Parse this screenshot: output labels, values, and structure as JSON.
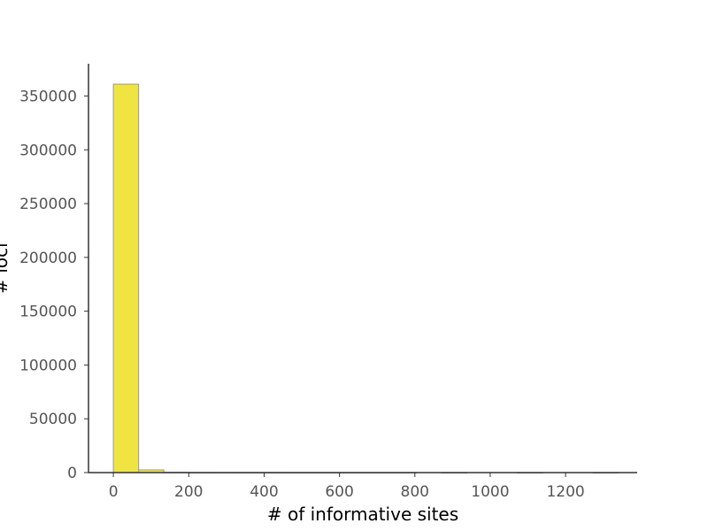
{
  "chart_data": {
    "type": "bar",
    "title": "",
    "xlabel": "# of informative sites",
    "ylabel": "# loci",
    "xlim": [
      -66,
      1390
    ],
    "ylim": [
      0,
      380000
    ],
    "xticks": [
      0,
      200,
      400,
      600,
      800,
      1000,
      1200
    ],
    "yticks": [
      0,
      50000,
      100000,
      150000,
      200000,
      250000,
      300000,
      350000
    ],
    "grid": false,
    "bin_width": 67,
    "bins": [
      {
        "x0": 0,
        "x1": 67,
        "count": 361000
      },
      {
        "x0": 67,
        "x1": 134,
        "count": 2500
      },
      {
        "x0": 134,
        "x1": 201,
        "count": 300
      },
      {
        "x0": 201,
        "x1": 268,
        "count": 80
      },
      {
        "x0": 268,
        "x1": 335,
        "count": 30
      },
      {
        "x0": 335,
        "x1": 402,
        "count": 10
      },
      {
        "x0": 402,
        "x1": 469,
        "count": 5
      },
      {
        "x0": 469,
        "x1": 536,
        "count": 3
      },
      {
        "x0": 536,
        "x1": 603,
        "count": 2
      },
      {
        "x0": 603,
        "x1": 670,
        "count": 1
      },
      {
        "x0": 670,
        "x1": 737,
        "count": 1
      },
      {
        "x0": 737,
        "x1": 804,
        "count": 1
      },
      {
        "x0": 804,
        "x1": 871,
        "count": 0
      },
      {
        "x0": 871,
        "x1": 938,
        "count": 1
      },
      {
        "x0": 938,
        "x1": 1005,
        "count": 0
      },
      {
        "x0": 1005,
        "x1": 1072,
        "count": 0
      },
      {
        "x0": 1072,
        "x1": 1139,
        "count": 1
      },
      {
        "x0": 1139,
        "x1": 1206,
        "count": 0
      },
      {
        "x0": 1206,
        "x1": 1273,
        "count": 0
      },
      {
        "x0": 1273,
        "x1": 1340,
        "count": 1
      }
    ],
    "colors": {
      "bar_fill": "#f0e442",
      "bar_edge": "#999999",
      "axis": "#333333"
    }
  }
}
